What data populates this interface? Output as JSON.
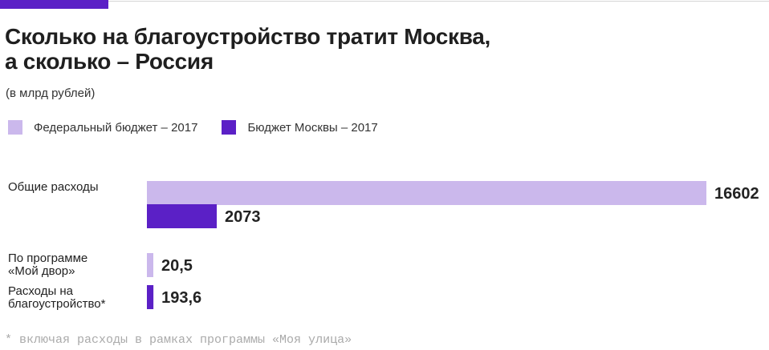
{
  "header": {
    "title_line1": "Сколько на благоустройство тратит Москва,",
    "title_line2": "а сколько – Россия",
    "subtitle": "(в млрд рублей)"
  },
  "legend": [
    {
      "label": "Федеральный бюджет – 2017",
      "color": "#cbb8ec"
    },
    {
      "label": "Бюджет Москвы – 2017",
      "color": "#5b20c6"
    }
  ],
  "category_labels": [
    {
      "lines": [
        "Общие расходы"
      ]
    },
    {
      "lines": [
        "По программе",
        "«Мой двор»"
      ]
    },
    {
      "lines": [
        "Расходы на",
        "благоустройство*"
      ]
    }
  ],
  "footnote": "* включая расходы в рамках программы «Моя улица»",
  "chart_data": {
    "type": "bar",
    "orientation": "horizontal",
    "unit": "млрд рублей",
    "bars": [
      {
        "series": "Федеральный бюджет – 2017",
        "value": 16602,
        "label": "16602",
        "color": "#cbb8ec"
      },
      {
        "series": "Бюджет Москвы – 2017",
        "value": 2073,
        "label": "2073",
        "color": "#5b20c6"
      },
      {
        "series": "Федеральный бюджет – 2017",
        "value": 20.5,
        "label": "20,5",
        "color": "#cbb8ec"
      },
      {
        "series": "Бюджет Москвы – 2017",
        "value": 193.6,
        "label": "193,6",
        "color": "#5b20c6"
      }
    ],
    "legend_position": "top-left",
    "grid": false
  }
}
